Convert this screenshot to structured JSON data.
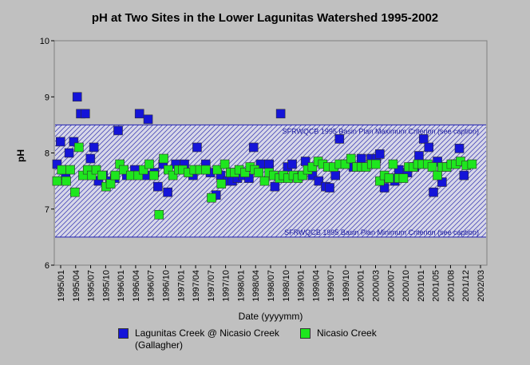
{
  "chart_data": {
    "type": "scatter",
    "title": "pH at Two Sites in the Lower Lagunitas Watershed 1995-2002",
    "xlabel": "Date (yyyymm)",
    "ylabel": "pH",
    "ylim": [
      6,
      10
    ],
    "yticks": [
      "6",
      "7",
      "8",
      "9",
      "10"
    ],
    "xticks": [
      "1995/01",
      "1995/04",
      "1995/07",
      "1995/10",
      "1996/01",
      "1996/04",
      "1996/07",
      "1996/10",
      "1997/01",
      "1997/04",
      "1997/07",
      "1997/10",
      "1998/01",
      "1998/04",
      "1998/07",
      "1998/10",
      "1999/01",
      "1999/04",
      "1999/07",
      "1999/10",
      "2000/01",
      "2000/03",
      "2000/07",
      "2000/10",
      "2001/01",
      "2001/05",
      "2001/08",
      "2001/12",
      "2002/03"
    ],
    "xrange": [
      1995.0,
      2002.45
    ],
    "criteria": [
      {
        "label": "SFRWQCB 1995 Basin Plan Maximum Criterion (see caption)",
        "value": 8.5
      },
      {
        "label": "SFRWQCB 1995 Basin Plan Minimum Criterion (see caption)",
        "value": 6.5
      }
    ],
    "series": [
      {
        "name": "Lagunitas Creek @ Nicasio Creek (Gallagher)",
        "color": "#1414d8",
        "points": [
          [
            1995.02,
            7.8
          ],
          [
            1995.08,
            8.2
          ],
          [
            1995.17,
            7.6
          ],
          [
            1995.23,
            8.0
          ],
          [
            1995.31,
            8.2
          ],
          [
            1995.37,
            9.0
          ],
          [
            1995.43,
            8.7
          ],
          [
            1995.51,
            8.7
          ],
          [
            1995.6,
            7.9
          ],
          [
            1995.66,
            8.1
          ],
          [
            1995.74,
            7.5
          ],
          [
            1995.82,
            7.6
          ],
          [
            1995.94,
            7.5
          ],
          [
            1996.02,
            7.55
          ],
          [
            1996.08,
            8.4
          ],
          [
            1996.23,
            7.6
          ],
          [
            1996.37,
            7.7
          ],
          [
            1996.45,
            8.7
          ],
          [
            1996.55,
            7.6
          ],
          [
            1996.6,
            8.6
          ],
          [
            1996.71,
            7.65
          ],
          [
            1996.77,
            7.4
          ],
          [
            1996.86,
            7.8
          ],
          [
            1996.94,
            7.3
          ],
          [
            1997.08,
            7.8
          ],
          [
            1997.23,
            7.8
          ],
          [
            1997.38,
            7.6
          ],
          [
            1997.45,
            8.1
          ],
          [
            1997.6,
            7.8
          ],
          [
            1997.68,
            7.65
          ],
          [
            1997.78,
            7.25
          ],
          [
            1997.86,
            7.6
          ],
          [
            1997.98,
            7.5
          ],
          [
            1998.06,
            7.5
          ],
          [
            1998.15,
            7.55
          ],
          [
            1998.24,
            7.6
          ],
          [
            1998.35,
            7.55
          ],
          [
            1998.43,
            8.1
          ],
          [
            1998.55,
            7.8
          ],
          [
            1998.7,
            7.8
          ],
          [
            1998.8,
            7.4
          ],
          [
            1998.9,
            8.7
          ],
          [
            1999.02,
            7.75
          ],
          [
            1999.1,
            7.8
          ],
          [
            1999.22,
            7.6
          ],
          [
            1999.33,
            7.85
          ],
          [
            1999.45,
            7.6
          ],
          [
            1999.56,
            7.5
          ],
          [
            1999.68,
            7.4
          ],
          [
            1999.75,
            7.38
          ],
          [
            1999.85,
            7.6
          ],
          [
            1999.92,
            8.25
          ],
          [
            2000.02,
            7.8
          ],
          [
            2000.16,
            7.75
          ],
          [
            2000.3,
            7.9
          ],
          [
            2000.47,
            7.9
          ],
          [
            2000.56,
            7.9
          ],
          [
            2000.62,
            7.98
          ],
          [
            2000.7,
            7.38
          ],
          [
            2000.8,
            7.55
          ],
          [
            2000.88,
            7.5
          ],
          [
            2000.95,
            7.7
          ],
          [
            2001.1,
            7.65
          ],
          [
            2001.22,
            7.75
          ],
          [
            2001.3,
            7.95
          ],
          [
            2001.38,
            8.25
          ],
          [
            2001.47,
            8.1
          ],
          [
            2001.55,
            7.3
          ],
          [
            2001.62,
            7.85
          ],
          [
            2001.7,
            7.48
          ],
          [
            2001.78,
            7.75
          ],
          [
            2001.92,
            7.8
          ],
          [
            2002.0,
            8.08
          ],
          [
            2002.08,
            7.6
          ]
        ]
      },
      {
        "name": "Nicasio Creek",
        "color": "#1ee61e",
        "points": [
          [
            1995.02,
            7.5
          ],
          [
            1995.1,
            7.7
          ],
          [
            1995.18,
            7.5
          ],
          [
            1995.25,
            7.7
          ],
          [
            1995.33,
            7.3
          ],
          [
            1995.4,
            8.1
          ],
          [
            1995.47,
            7.6
          ],
          [
            1995.55,
            7.7
          ],
          [
            1995.62,
            7.6
          ],
          [
            1995.7,
            7.7
          ],
          [
            1995.8,
            7.6
          ],
          [
            1995.87,
            7.4
          ],
          [
            1995.95,
            7.45
          ],
          [
            1996.03,
            7.6
          ],
          [
            1996.11,
            7.8
          ],
          [
            1996.18,
            7.7
          ],
          [
            1996.3,
            7.6
          ],
          [
            1996.43,
            7.6
          ],
          [
            1996.52,
            7.7
          ],
          [
            1996.62,
            7.8
          ],
          [
            1996.7,
            7.6
          ],
          [
            1996.79,
            6.9
          ],
          [
            1996.87,
            7.9
          ],
          [
            1996.95,
            7.7
          ],
          [
            1997.03,
            7.6
          ],
          [
            1997.13,
            7.7
          ],
          [
            1997.2,
            7.7
          ],
          [
            1997.3,
            7.65
          ],
          [
            1997.4,
            7.7
          ],
          [
            1997.5,
            7.7
          ],
          [
            1997.6,
            7.7
          ],
          [
            1997.7,
            7.2
          ],
          [
            1997.8,
            7.7
          ],
          [
            1997.87,
            7.45
          ],
          [
            1997.93,
            7.8
          ],
          [
            1998.03,
            7.65
          ],
          [
            1998.1,
            7.65
          ],
          [
            1998.18,
            7.7
          ],
          [
            1998.28,
            7.65
          ],
          [
            1998.37,
            7.75
          ],
          [
            1998.45,
            7.7
          ],
          [
            1998.52,
            7.65
          ],
          [
            1998.62,
            7.5
          ],
          [
            1998.7,
            7.65
          ],
          [
            1998.78,
            7.6
          ],
          [
            1998.88,
            7.55
          ],
          [
            1998.95,
            7.6
          ],
          [
            1999.03,
            7.55
          ],
          [
            1999.12,
            7.6
          ],
          [
            1999.2,
            7.55
          ],
          [
            1999.28,
            7.6
          ],
          [
            1999.37,
            7.7
          ],
          [
            1999.45,
            7.75
          ],
          [
            1999.55,
            7.85
          ],
          [
            1999.63,
            7.8
          ],
          [
            1999.72,
            7.75
          ],
          [
            1999.82,
            7.75
          ],
          [
            1999.92,
            7.8
          ],
          [
            2000.02,
            7.8
          ],
          [
            2000.12,
            7.9
          ],
          [
            2000.22,
            7.75
          ],
          [
            2000.3,
            7.75
          ],
          [
            2000.38,
            7.75
          ],
          [
            2000.48,
            7.8
          ],
          [
            2000.55,
            7.8
          ],
          [
            2000.62,
            7.5
          ],
          [
            2000.7,
            7.6
          ],
          [
            2000.78,
            7.55
          ],
          [
            2000.85,
            7.8
          ],
          [
            2000.95,
            7.55
          ],
          [
            2001.03,
            7.55
          ],
          [
            2001.12,
            7.75
          ],
          [
            2001.2,
            7.75
          ],
          [
            2001.28,
            7.8
          ],
          [
            2001.36,
            7.8
          ],
          [
            2001.45,
            7.8
          ],
          [
            2001.53,
            7.75
          ],
          [
            2001.62,
            7.6
          ],
          [
            2001.7,
            7.75
          ],
          [
            2001.78,
            7.75
          ],
          [
            2001.86,
            7.8
          ],
          [
            2001.94,
            7.8
          ],
          [
            2002.02,
            7.85
          ],
          [
            2002.12,
            7.78
          ],
          [
            2002.22,
            7.8
          ]
        ]
      }
    ]
  }
}
